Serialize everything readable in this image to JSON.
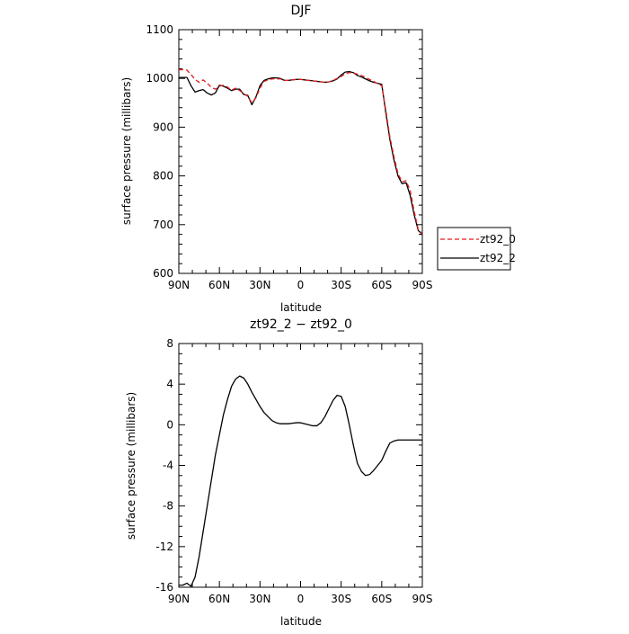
{
  "chart_data": [
    {
      "type": "line",
      "title": "DJF",
      "xlabel": "latitude",
      "ylabel": "surface pressure (millibars)",
      "xlim": [
        90,
        -90
      ],
      "ylim": [
        600,
        1100
      ],
      "x_ticks": [
        90,
        60,
        30,
        0,
        -30,
        -60,
        -90
      ],
      "x_tick_labels": [
        "90N",
        "60N",
        "30N",
        "0",
        "30S",
        "60S",
        "90S"
      ],
      "y_ticks": [
        600,
        700,
        800,
        900,
        1000,
        1100
      ],
      "y_tick_labels": [
        "600",
        "700",
        "800",
        "900",
        "1000",
        "1100"
      ],
      "legend": "right",
      "grid": false,
      "series": [
        {
          "name": "zt92_0",
          "color": "#e41a1c",
          "dash": "dashed",
          "x": [
            90,
            87,
            84,
            81,
            78,
            75,
            72,
            69,
            66,
            63,
            60,
            57,
            54,
            51,
            48,
            45,
            42,
            39,
            36,
            33,
            30,
            27,
            24,
            21,
            18,
            15,
            12,
            9,
            6,
            3,
            0,
            -3,
            -6,
            -9,
            -12,
            -15,
            -18,
            -21,
            -24,
            -27,
            -30,
            -33,
            -36,
            -39,
            -42,
            -45,
            -48,
            -51,
            -54,
            -57,
            -60,
            -63,
            -66,
            -69,
            -72,
            -75,
            -78,
            -81,
            -84,
            -87,
            -90
          ],
          "y": [
            1018,
            1018,
            1017,
            1008,
            998,
            992,
            997,
            990,
            982,
            978,
            984,
            986,
            982,
            976,
            980,
            975,
            969,
            963,
            950,
            960,
            980,
            994,
            997,
            999,
            999,
            999,
            996,
            996,
            997,
            998,
            998,
            997,
            996,
            995,
            994,
            993,
            992,
            993,
            996,
            1000,
            1004,
            1009,
            1012,
            1011,
            1009,
            1006,
            1002,
            998,
            994,
            989,
            985,
            935,
            880,
            840,
            805,
            788,
            790,
            770,
            727,
            690,
            681
          ]
        },
        {
          "name": "zt92_2",
          "color": "#000000",
          "dash": "solid",
          "x": [
            90,
            87,
            84,
            81,
            78,
            75,
            72,
            69,
            66,
            63,
            60,
            57,
            54,
            51,
            48,
            45,
            42,
            39,
            36,
            33,
            30,
            27,
            24,
            21,
            18,
            15,
            12,
            9,
            6,
            3,
            0,
            -3,
            -6,
            -9,
            -12,
            -15,
            -18,
            -21,
            -24,
            -27,
            -30,
            -33,
            -36,
            -39,
            -42,
            -45,
            -48,
            -51,
            -54,
            -57,
            -60,
            -63,
            -66,
            -69,
            -72,
            -75,
            -78,
            -81,
            -84,
            -87,
            -90
          ],
          "y": [
            1002,
            1002,
            1002,
            985,
            972,
            975,
            977,
            970,
            966,
            970,
            986,
            984,
            980,
            975,
            978,
            978,
            967,
            965,
            946,
            962,
            985,
            996,
            999,
            1001,
            1001,
            1000,
            996,
            996,
            997,
            998,
            998,
            997,
            996,
            995,
            994,
            993,
            992,
            993,
            995,
            999,
            1007,
            1013,
            1014,
            1012,
            1006,
            1003,
            999,
            995,
            992,
            990,
            988,
            930,
            875,
            833,
            800,
            784,
            786,
            760,
            720,
            688,
            680
          ]
        }
      ]
    },
    {
      "type": "line",
      "title": "zt92_2 − zt92_0",
      "xlabel": "latitude",
      "ylabel": "surface pressure (millibars)",
      "xlim": [
        90,
        -90
      ],
      "ylim": [
        -16,
        8
      ],
      "x_ticks": [
        90,
        60,
        30,
        0,
        -30,
        -60,
        -90
      ],
      "x_tick_labels": [
        "90N",
        "60N",
        "30N",
        "0",
        "30S",
        "60S",
        "90S"
      ],
      "y_ticks": [
        -16,
        -12,
        -8,
        -4,
        0,
        4,
        8
      ],
      "y_tick_labels": [
        "-16",
        "-12",
        "-8",
        "-4",
        "0",
        "4",
        "8"
      ],
      "grid": false,
      "series": [
        {
          "color": "#000000",
          "dash": "solid",
          "x": [
            90,
            87,
            84,
            81,
            78,
            75,
            72,
            69,
            66,
            63,
            60,
            57,
            54,
            51,
            48,
            45,
            42,
            39,
            36,
            33,
            30,
            27,
            24,
            21,
            18,
            15,
            12,
            9,
            6,
            3,
            0,
            -3,
            -6,
            -9,
            -12,
            -15,
            -18,
            -21,
            -24,
            -27,
            -30,
            -33,
            -36,
            -39,
            -42,
            -45,
            -48,
            -51,
            -54,
            -57,
            -60,
            -63,
            -66,
            -69,
            -72,
            -75,
            -78,
            -81,
            -84,
            -87,
            -90
          ],
          "y": [
            -15.8,
            -15.8,
            -15.6,
            -15.9,
            -15.0,
            -13.0,
            -10.5,
            -8.0,
            -5.5,
            -3.0,
            -1.0,
            1.0,
            2.5,
            3.8,
            4.5,
            4.8,
            4.6,
            4.0,
            3.2,
            2.5,
            1.8,
            1.2,
            0.8,
            0.4,
            0.2,
            0.1,
            0.1,
            0.1,
            0.15,
            0.2,
            0.2,
            0.1,
            0.0,
            -0.1,
            -0.1,
            0.2,
            0.8,
            1.6,
            2.4,
            2.9,
            2.8,
            1.8,
            0.0,
            -2.0,
            -3.8,
            -4.6,
            -5.0,
            -4.9,
            -4.5,
            -4.0,
            -3.5,
            -2.6,
            -1.8,
            -1.6,
            -1.5,
            -1.5,
            -1.5,
            -1.5,
            -1.5,
            -1.5,
            -1.5
          ]
        }
      ]
    }
  ]
}
